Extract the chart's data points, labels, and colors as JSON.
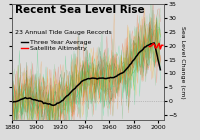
{
  "title": "Recent Sea Level Rise",
  "subtitle": "23 Annual Tide Gauge Records",
  "legend_entries": [
    "Three Year Average",
    "Satellite Altimetry"
  ],
  "ylabel": "Sea Level Change (cm)",
  "xlim": [
    1880,
    2005
  ],
  "ylim": [
    -7,
    35
  ],
  "yticks": [
    -5,
    0,
    5,
    10,
    15,
    20,
    25,
    30,
    35
  ],
  "xticks": [
    1880,
    1900,
    1920,
    1940,
    1960,
    1980,
    2000
  ],
  "bg_color": "#dcdcdc",
  "title_fontsize": 7.5,
  "subtitle_fontsize": 4.5,
  "legend_fontsize": 4.5,
  "axis_fontsize": 4.5,
  "tick_fontsize": 4.5,
  "seed": 42,
  "n_records": 23,
  "gauge_start": 1880,
  "gauge_end": 2003,
  "sat_start": 1993,
  "sat_end": 2005
}
